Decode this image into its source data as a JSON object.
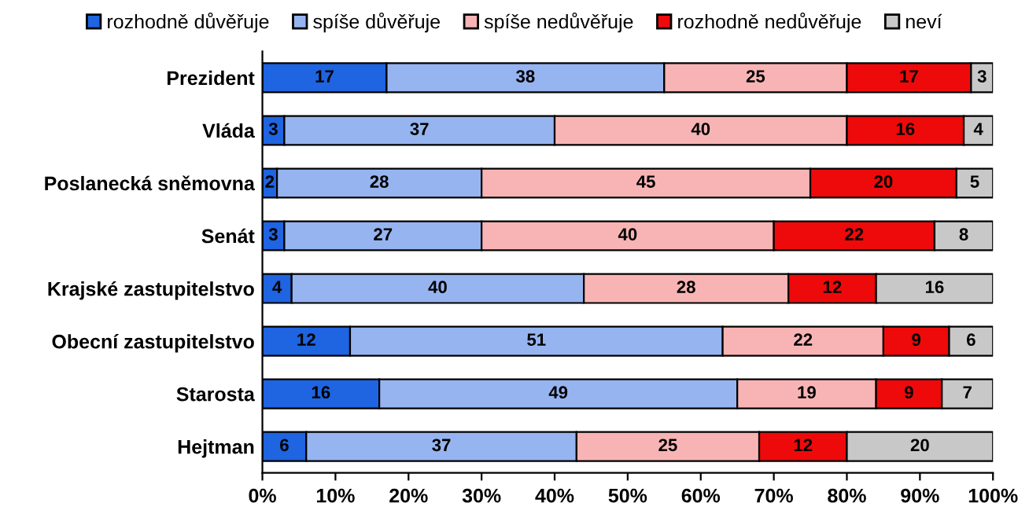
{
  "chart_data": {
    "type": "bar",
    "orientation": "horizontal",
    "stacked": true,
    "data_labels": true,
    "legend": "top",
    "grid": false,
    "categories": [
      "Prezident",
      "Vláda",
      "Poslanecká sněmovna",
      "Senát",
      "Krajské zastupitelstvo",
      "Obecní zastupitelstvo",
      "Starosta",
      "Hejtman"
    ],
    "series": [
      {
        "name": "rozhodně důvěřuje",
        "color": "#1f64e0",
        "values": [
          17,
          3,
          2,
          3,
          4,
          12,
          16,
          6
        ]
      },
      {
        "name": "spíše důvěřuje",
        "color": "#96b4f0",
        "values": [
          38,
          37,
          28,
          27,
          40,
          51,
          49,
          37
        ]
      },
      {
        "name": "spíše nedůvěřuje",
        "color": "#f8b4b4",
        "values": [
          25,
          40,
          45,
          40,
          28,
          22,
          19,
          25
        ]
      },
      {
        "name": "rozhodně nedůvěřuje",
        "color": "#ee0a0a",
        "values": [
          17,
          16,
          20,
          22,
          12,
          9,
          9,
          12
        ]
      },
      {
        "name": "neví",
        "color": "#c8c8c8",
        "values": [
          3,
          4,
          5,
          8,
          16,
          6,
          7,
          20
        ]
      }
    ],
    "xlim": [
      0,
      100
    ],
    "xticks": [
      {
        "value": 0,
        "label": "0%"
      },
      {
        "value": 10,
        "label": "10%"
      },
      {
        "value": 20,
        "label": "20%"
      },
      {
        "value": 30,
        "label": "30%"
      },
      {
        "value": 40,
        "label": "40%"
      },
      {
        "value": 50,
        "label": "50%"
      },
      {
        "value": 60,
        "label": "60%"
      },
      {
        "value": 70,
        "label": "70%"
      },
      {
        "value": 80,
        "label": "80%"
      },
      {
        "value": 90,
        "label": "90%"
      },
      {
        "value": 100,
        "label": "100%"
      }
    ]
  }
}
